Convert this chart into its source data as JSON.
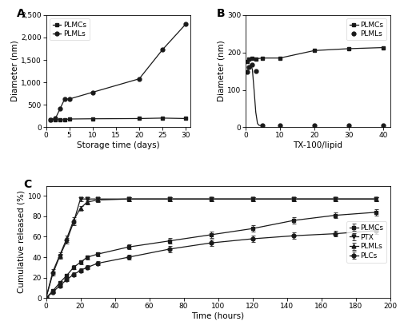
{
  "panel_A": {
    "title": "A",
    "xlabel": "Storage time (days)",
    "ylabel": "Diameter (nm)",
    "xlim": [
      0,
      31
    ],
    "ylim": [
      0,
      2500
    ],
    "ytick_vals": [
      0,
      500,
      1000,
      1500,
      2000,
      2500
    ],
    "ytick_labels": [
      "0",
      "500",
      "1,000",
      "1,500",
      "2,000",
      "2,500"
    ],
    "xticks": [
      0,
      5,
      10,
      15,
      20,
      25,
      30
    ],
    "PLMCs_x": [
      1,
      2,
      3,
      4,
      5,
      10,
      20,
      25,
      30
    ],
    "PLMCs_y": [
      175,
      175,
      165,
      170,
      185,
      190,
      195,
      205,
      195
    ],
    "PLMLs_x": [
      1,
      2,
      3,
      4,
      5,
      10,
      20,
      25,
      30
    ],
    "PLMLs_y": [
      175,
      195,
      410,
      630,
      630,
      780,
      1080,
      1730,
      2300
    ]
  },
  "panel_B": {
    "title": "B",
    "xlabel": "TX-100/lipid",
    "ylabel": "Diameter (nm)",
    "xlim": [
      0,
      42
    ],
    "ylim": [
      0,
      300
    ],
    "ytick_vals": [
      0,
      100,
      200,
      300
    ],
    "ytick_labels": [
      "0",
      "100",
      "200",
      "300"
    ],
    "xticks": [
      0,
      10,
      20,
      30,
      40
    ],
    "PLMCs_x": [
      0.5,
      1,
      2,
      3,
      5,
      10,
      20,
      30,
      40
    ],
    "PLMCs_y": [
      175,
      182,
      185,
      183,
      185,
      185,
      205,
      210,
      213
    ],
    "PLMLs_x": [
      0.5,
      1,
      2,
      3,
      5,
      10,
      20,
      30,
      40
    ],
    "PLMLs_y": [
      148,
      160,
      168,
      150,
      5,
      5,
      5,
      5,
      5
    ],
    "PLMLs_curve_x": [
      0.3,
      0.5,
      1.0,
      1.5,
      2.0,
      2.5,
      3.0,
      3.5,
      4.0,
      4.5,
      5.0
    ],
    "PLMLs_curve_y": [
      143,
      148,
      160,
      168,
      155,
      100,
      40,
      10,
      5,
      5,
      5
    ]
  },
  "panel_C": {
    "title": "C",
    "xlabel": "Time (hours)",
    "ylabel": "Cumulative released (%)",
    "xlim": [
      0,
      200
    ],
    "ylim": [
      0,
      110
    ],
    "ytick_vals": [
      0,
      20,
      40,
      60,
      80,
      100
    ],
    "xticks": [
      0,
      20,
      40,
      60,
      80,
      100,
      120,
      140,
      160,
      180,
      200
    ],
    "PLMCs_x": [
      0,
      4,
      8,
      12,
      16,
      20,
      24,
      30,
      48,
      72,
      96,
      120,
      144,
      168,
      192
    ],
    "PLMCs_y": [
      0,
      7,
      15,
      22,
      30,
      35,
      40,
      43,
      50,
      56,
      62,
      68,
      76,
      81,
      84
    ],
    "PLMCs_err": [
      0,
      1.0,
      1.5,
      1.5,
      2.0,
      2.0,
      2.0,
      2.0,
      2.5,
      3.0,
      3.0,
      3.0,
      3.0,
      3.0,
      3.0
    ],
    "PTX_x": [
      0,
      4,
      8,
      12,
      16,
      20,
      24,
      30,
      48,
      72,
      96,
      120,
      144,
      168,
      192
    ],
    "PTX_y": [
      0,
      24,
      41,
      56,
      74,
      97,
      97,
      97,
      97,
      97,
      97,
      97,
      97,
      97,
      97
    ],
    "PTX_err": [
      0,
      2.0,
      2.5,
      3.0,
      3.0,
      2.0,
      2.0,
      2.0,
      2.0,
      2.0,
      2.0,
      2.0,
      2.0,
      2.0,
      2.0
    ],
    "PLMLs_x": [
      0,
      4,
      8,
      12,
      16,
      20,
      24,
      30,
      48,
      72,
      96,
      120,
      144,
      168,
      192
    ],
    "PLMLs_y": [
      0,
      26,
      42,
      58,
      76,
      88,
      94,
      96,
      97,
      97,
      97,
      97,
      97,
      97,
      97
    ],
    "PLMLs_err": [
      0,
      2.0,
      2.5,
      3.0,
      3.0,
      2.0,
      2.0,
      2.0,
      2.0,
      2.0,
      2.0,
      2.0,
      2.0,
      2.0,
      2.0
    ],
    "PLCs_x": [
      0,
      4,
      8,
      12,
      16,
      20,
      24,
      30,
      48,
      72,
      96,
      120,
      144,
      168,
      192
    ],
    "PLCs_y": [
      0,
      6,
      12,
      18,
      23,
      27,
      30,
      34,
      40,
      48,
      54,
      58,
      61,
      63,
      66
    ],
    "PLCs_err": [
      0,
      1.0,
      1.5,
      1.5,
      2.0,
      2.0,
      2.0,
      2.0,
      2.5,
      3.0,
      3.0,
      3.0,
      3.0,
      3.0,
      3.0
    ]
  },
  "bg_color": "#ffffff",
  "line_color": "#1a1a1a",
  "marker_size": 3.5,
  "tick_fontsize": 6.5,
  "label_fontsize": 7.5,
  "panel_label_fontsize": 10
}
